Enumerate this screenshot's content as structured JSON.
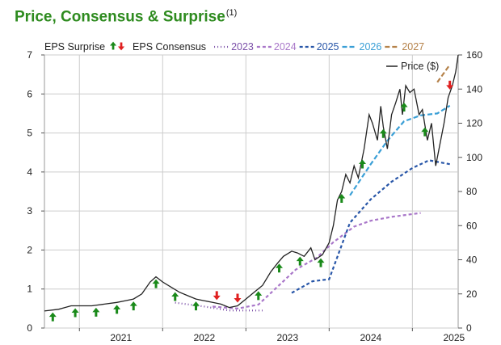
{
  "title": "Price, Consensus & Surprise",
  "title_note": "(1)",
  "chart_data": {
    "type": "line",
    "legend": {
      "eps_surprise": "EPS Surprise",
      "up_arrow": "↑",
      "down_arrow": "↓",
      "eps_consensus": "EPS Consensus",
      "years": [
        {
          "label": "2023",
          "color": "#7b4fa8",
          "dash": "1,3"
        },
        {
          "label": "2024",
          "color": "#a977c9",
          "dash": "4,3"
        },
        {
          "label": "2025",
          "color": "#2856a8",
          "dash": "4,3"
        },
        {
          "label": "2026",
          "color": "#3a9fd6",
          "dash": "6,3"
        },
        {
          "label": "2027",
          "color": "#b5824a",
          "dash": "6,3"
        }
      ],
      "price": "Price ($)"
    },
    "x_ticks": [
      "2021",
      "2022",
      "2023",
      "2024",
      "2025"
    ],
    "x_range": [
      2020.58,
      2025.55
    ],
    "left_axis": {
      "ticks": [
        "0",
        "1",
        "2",
        "3",
        "4",
        "5",
        "6",
        "7"
      ],
      "range": [
        0,
        7
      ]
    },
    "right_axis": {
      "ticks": [
        "0",
        "20",
        "40",
        "60",
        "80",
        "100",
        "120",
        "140",
        "160"
      ],
      "range": [
        0,
        160
      ]
    },
    "colors": {
      "price": "#222222",
      "up": "#1a8a1a",
      "down": "#e02020",
      "grid": "#cccccc",
      "title": "#2e8b1f"
    },
    "price": [
      [
        2020.58,
        10
      ],
      [
        2020.75,
        11
      ],
      [
        2020.9,
        13
      ],
      [
        2021.0,
        13
      ],
      [
        2021.15,
        13
      ],
      [
        2021.3,
        14
      ],
      [
        2021.45,
        15
      ],
      [
        2021.55,
        16
      ],
      [
        2021.65,
        17
      ],
      [
        2021.75,
        20
      ],
      [
        2021.85,
        27
      ],
      [
        2021.92,
        30
      ],
      [
        2022.0,
        27
      ],
      [
        2022.1,
        24
      ],
      [
        2022.2,
        21
      ],
      [
        2022.3,
        19
      ],
      [
        2022.4,
        17
      ],
      [
        2022.5,
        16
      ],
      [
        2022.6,
        15
      ],
      [
        2022.7,
        14
      ],
      [
        2022.8,
        12
      ],
      [
        2022.9,
        13
      ],
      [
        2023.0,
        17
      ],
      [
        2023.1,
        21
      ],
      [
        2023.2,
        25
      ],
      [
        2023.3,
        33
      ],
      [
        2023.38,
        38
      ],
      [
        2023.45,
        42
      ],
      [
        2023.55,
        45
      ],
      [
        2023.62,
        44
      ],
      [
        2023.7,
        42
      ],
      [
        2023.78,
        47
      ],
      [
        2023.83,
        40
      ],
      [
        2023.92,
        43
      ],
      [
        2024.0,
        50
      ],
      [
        2024.05,
        60
      ],
      [
        2024.1,
        75
      ],
      [
        2024.15,
        80
      ],
      [
        2024.2,
        90
      ],
      [
        2024.25,
        85
      ],
      [
        2024.3,
        95
      ],
      [
        2024.35,
        88
      ],
      [
        2024.42,
        105
      ],
      [
        2024.48,
        125
      ],
      [
        2024.52,
        120
      ],
      [
        2024.58,
        110
      ],
      [
        2024.62,
        130
      ],
      [
        2024.65,
        118
      ],
      [
        2024.7,
        105
      ],
      [
        2024.75,
        125
      ],
      [
        2024.8,
        132
      ],
      [
        2024.85,
        140
      ],
      [
        2024.88,
        125
      ],
      [
        2024.92,
        142
      ],
      [
        2024.97,
        138
      ],
      [
        2025.02,
        140
      ],
      [
        2025.08,
        125
      ],
      [
        2025.12,
        128
      ],
      [
        2025.18,
        110
      ],
      [
        2025.23,
        120
      ],
      [
        2025.28,
        95
      ],
      [
        2025.32,
        105
      ],
      [
        2025.38,
        120
      ],
      [
        2025.43,
        135
      ],
      [
        2025.48,
        142
      ],
      [
        2025.52,
        150
      ],
      [
        2025.55,
        160
      ]
    ],
    "consensus": {
      "2023": [
        [
          2022.15,
          0.65
        ],
        [
          2022.5,
          0.55
        ],
        [
          2022.8,
          0.45
        ],
        [
          2023.2,
          0.45
        ]
      ],
      "2024": [
        [
          2022.6,
          0.55
        ],
        [
          2022.9,
          0.5
        ],
        [
          2023.15,
          0.6
        ],
        [
          2023.35,
          1.0
        ],
        [
          2023.6,
          1.5
        ],
        [
          2023.85,
          1.8
        ],
        [
          2024.05,
          2.2
        ],
        [
          2024.3,
          2.6
        ],
        [
          2024.5,
          2.75
        ],
        [
          2024.75,
          2.85
        ],
        [
          2025.1,
          2.95
        ]
      ],
      "2025": [
        [
          2023.55,
          0.9
        ],
        [
          2023.8,
          1.2
        ],
        [
          2024.0,
          1.25
        ],
        [
          2024.25,
          2.7
        ],
        [
          2024.5,
          3.3
        ],
        [
          2024.75,
          3.75
        ],
        [
          2025.0,
          4.1
        ],
        [
          2025.2,
          4.3
        ],
        [
          2025.45,
          4.2
        ]
      ],
      "2026": [
        [
          2024.25,
          3.4
        ],
        [
          2024.5,
          4.2
        ],
        [
          2024.7,
          4.8
        ],
        [
          2024.9,
          5.3
        ],
        [
          2025.1,
          5.45
        ],
        [
          2025.3,
          5.5
        ],
        [
          2025.45,
          5.7
        ]
      ],
      "2027": [
        [
          2025.3,
          6.3
        ],
        [
          2025.45,
          6.75
        ]
      ]
    },
    "surprises": [
      {
        "x": 2020.68,
        "dir": "up"
      },
      {
        "x": 2020.95,
        "dir": "up"
      },
      {
        "x": 2021.2,
        "dir": "up"
      },
      {
        "x": 2021.45,
        "dir": "up"
      },
      {
        "x": 2021.65,
        "dir": "up"
      },
      {
        "x": 2021.92,
        "dir": "up"
      },
      {
        "x": 2022.15,
        "dir": "up"
      },
      {
        "x": 2022.4,
        "dir": "up"
      },
      {
        "x": 2022.65,
        "dir": "down"
      },
      {
        "x": 2022.9,
        "dir": "down"
      },
      {
        "x": 2023.15,
        "dir": "up"
      },
      {
        "x": 2023.4,
        "dir": "up"
      },
      {
        "x": 2023.65,
        "dir": "up"
      },
      {
        "x": 2023.9,
        "dir": "up"
      },
      {
        "x": 2024.15,
        "dir": "up"
      },
      {
        "x": 2024.4,
        "dir": "up"
      },
      {
        "x": 2024.65,
        "dir": "up"
      },
      {
        "x": 2024.9,
        "dir": "up"
      },
      {
        "x": 2025.15,
        "dir": "up"
      },
      {
        "x": 2025.45,
        "dir": "down"
      }
    ]
  }
}
